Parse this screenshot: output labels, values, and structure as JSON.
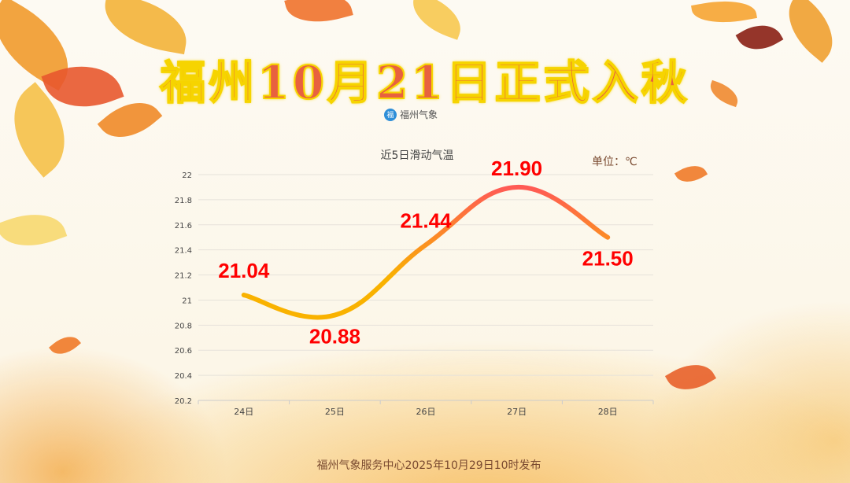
{
  "header": {
    "title": "福州10月21日正式入秋",
    "brand": "福州气象",
    "brand_logo_icon": "fuzhou-weather-logo-icon"
  },
  "footer": {
    "text": "福州气象服务中心2025年10月29日10时发布"
  },
  "chart_data": {
    "type": "line",
    "title": "近5日滑动气温",
    "unit_label": "单位：℃",
    "categories": [
      "24日",
      "25日",
      "26日",
      "27日",
      "28日"
    ],
    "values": [
      21.04,
      20.88,
      21.44,
      21.9,
      21.5
    ],
    "data_labels": [
      "21.04",
      "20.88",
      "21.44",
      "21.90",
      "21.50"
    ],
    "ylim": [
      20.2,
      22
    ],
    "yticks": [
      "20.2",
      "20.4",
      "20.6",
      "20.8",
      "21",
      "21.2",
      "21.4",
      "21.6",
      "21.8",
      "22"
    ],
    "grid": true,
    "smooth": true,
    "line_gradient": [
      "#f9b200",
      "#ff5a55"
    ],
    "label_color": "#ff0000"
  }
}
